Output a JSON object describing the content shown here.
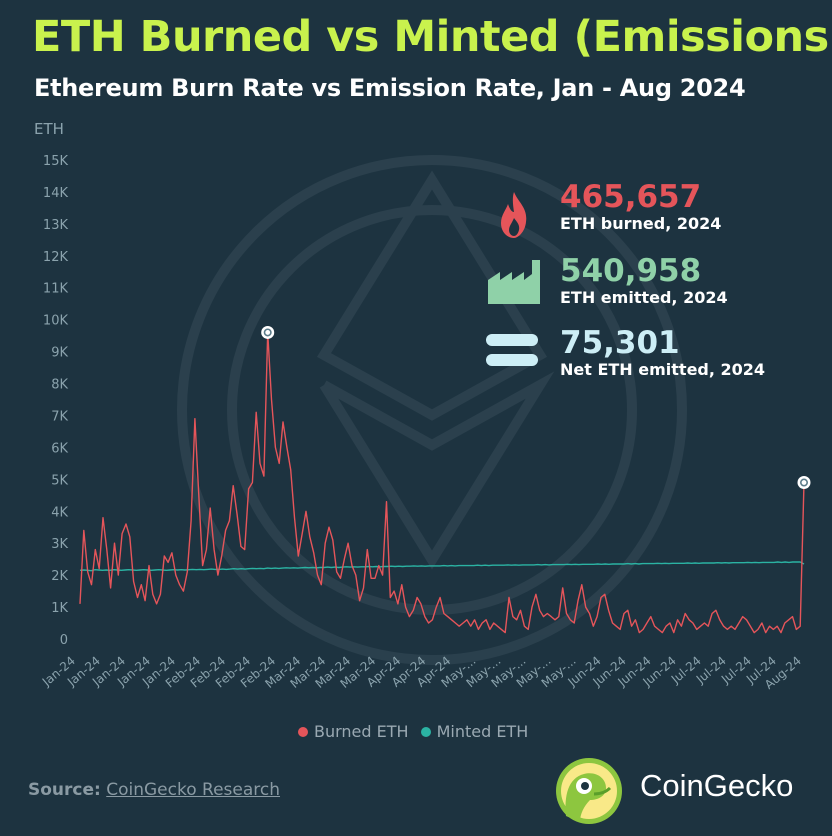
{
  "header": {
    "title": "ETH Burned vs Minted (Emissions)",
    "subtitle": "Ethereum Burn Rate vs Emission Rate, Jan - Aug 2024"
  },
  "stats": [
    {
      "value": "465,657",
      "label": "ETH burned, 2024",
      "color": "#e5555a",
      "icon": "fire-icon"
    },
    {
      "value": "540,958",
      "label": "ETH emitted, 2024",
      "color": "#8fd1a8",
      "icon": "factory-icon"
    },
    {
      "value": "75,301",
      "label": "Net ETH emitted, 2024",
      "color": "#cdeef6",
      "icon": "equals-icon"
    }
  ],
  "legend": {
    "burned": "Burned ETH",
    "minted": "Minted ETH"
  },
  "footer": {
    "source_label": "Source:",
    "source_name": "CoinGecko Research",
    "brand": "CoinGecko"
  },
  "colors": {
    "burned": "#e5555a",
    "minted": "#2bb3a3",
    "title": "#c9f24d",
    "background": "#1d3340"
  },
  "chart_data": {
    "type": "line",
    "ylabel": "ETH",
    "ylim": [
      0,
      15000
    ],
    "yticks": [
      "0",
      "1K",
      "2K",
      "3K",
      "4K",
      "5K",
      "6K",
      "7K",
      "8K",
      "9K",
      "10K",
      "11K",
      "12K",
      "13K",
      "14K",
      "15K"
    ],
    "xticks": [
      "Jan-24",
      "Jan-24",
      "Jan-24",
      "Jan-24",
      "Jan-24",
      "Feb-24",
      "Feb-24",
      "Feb-24",
      "Feb-24",
      "Mar-24",
      "Mar-24",
      "Mar-24",
      "Mar-24",
      "Apr-24",
      "Apr-24",
      "Apr-24",
      "May-...",
      "May-...",
      "May-...",
      "May-...",
      "May-...",
      "Jun-24",
      "Jun-24",
      "Jun-24",
      "Jun-24",
      "Jul-24",
      "Jul-24",
      "Jul-24",
      "Jul-24",
      "Aug-24"
    ],
    "series": [
      {
        "name": "Burned ETH",
        "values": [
          1100,
          3400,
          2100,
          1700,
          2800,
          2200,
          3800,
          2800,
          1600,
          3000,
          2000,
          3300,
          3600,
          3200,
          1800,
          1300,
          1700,
          1200,
          2300,
          1400,
          1100,
          1400,
          2600,
          2400,
          2700,
          2000,
          1700,
          1500,
          2100,
          3700,
          6900,
          4500,
          2300,
          2800,
          4100,
          2800,
          2000,
          2600,
          3400,
          3700,
          4800,
          3900,
          2900,
          2800,
          4700,
          4900,
          7100,
          5500,
          5100,
          9600,
          7500,
          6000,
          5500,
          6800,
          6000,
          5300,
          3800,
          2600,
          3300,
          4000,
          3200,
          2700,
          2000,
          1700,
          3000,
          3500,
          3100,
          2100,
          1900,
          2500,
          3000,
          2300,
          2000,
          1200,
          1600,
          2800,
          1900,
          1900,
          2300,
          2000,
          4300,
          1300,
          1500,
          1100,
          1700,
          1000,
          700,
          900,
          1300,
          1100,
          700,
          500,
          600,
          1000,
          1300,
          800,
          700,
          600,
          500,
          400,
          500,
          600,
          400,
          600,
          300,
          500,
          600,
          300,
          500,
          400,
          300,
          200,
          1300,
          700,
          600,
          900,
          400,
          300,
          1000,
          1400,
          900,
          700,
          800,
          700,
          600,
          700,
          1600,
          800,
          600,
          500,
          1200,
          1700,
          1000,
          800,
          400,
          700,
          1300,
          1400,
          900,
          500,
          400,
          300,
          800,
          900,
          400,
          600,
          200,
          300,
          500,
          700,
          400,
          300,
          200,
          400,
          500,
          200,
          600,
          400,
          800,
          600,
          500,
          300,
          400,
          500,
          400,
          800,
          900,
          600,
          400,
          300,
          400,
          300,
          500,
          700,
          600,
          400,
          200,
          300,
          500,
          200,
          400,
          300,
          400,
          200,
          500,
          600,
          700,
          300,
          400,
          4900
        ]
      },
      {
        "name": "Minted ETH",
        "values": [
          2150,
          2160,
          2150,
          2140,
          2170,
          2160,
          2150,
          2160,
          2150,
          2170,
          2160,
          2150,
          2160,
          2170,
          2160,
          2150,
          2160,
          2170,
          2160,
          2150,
          2160,
          2170,
          2160,
          2150,
          2160,
          2170,
          2160,
          2170,
          2160,
          2170,
          2180,
          2170,
          2180,
          2170,
          2180,
          2190,
          2180,
          2180,
          2190,
          2180,
          2190,
          2200,
          2190,
          2200,
          2190,
          2200,
          2210,
          2200,
          2210,
          2200,
          2220,
          2210,
          2220,
          2210,
          2220,
          2230,
          2220,
          2230,
          2220,
          2230,
          2240,
          2230,
          2240,
          2230,
          2240,
          2240,
          2250,
          2240,
          2250,
          2240,
          2250,
          2260,
          2250,
          2260,
          2250,
          2260,
          2260,
          2270,
          2260,
          2270,
          2260,
          2270,
          2270,
          2280,
          2270,
          2280,
          2270,
          2280,
          2280,
          2290,
          2280,
          2290,
          2280,
          2290,
          2290,
          2290,
          2290,
          2300,
          2290,
          2300,
          2290,
          2300,
          2300,
          2300,
          2300,
          2300,
          2310,
          2300,
          2310,
          2300,
          2310,
          2310,
          2310,
          2310,
          2320,
          2310,
          2320,
          2310,
          2320,
          2320,
          2320,
          2320,
          2330,
          2320,
          2330,
          2320,
          2330,
          2330,
          2330,
          2330,
          2340,
          2330,
          2340,
          2330,
          2340,
          2340,
          2340,
          2340,
          2350,
          2340,
          2350,
          2340,
          2350,
          2350,
          2350,
          2350,
          2360,
          2350,
          2360,
          2350,
          2360,
          2360,
          2360,
          2360,
          2370,
          2360,
          2370,
          2360,
          2370,
          2370,
          2370,
          2370,
          2380,
          2370,
          2380,
          2370,
          2380,
          2380,
          2380,
          2380,
          2390,
          2380,
          2390,
          2380,
          2390,
          2390,
          2390,
          2390,
          2400,
          2390,
          2400,
          2390,
          2400,
          2400,
          2400,
          2400,
          2410,
          2400,
          2410,
          2400,
          2410,
          2410,
          2410,
          2350
        ]
      }
    ],
    "highlights": [
      {
        "series": "Burned ETH",
        "value": 9600
      },
      {
        "series": "Burned ETH",
        "value": 4900
      }
    ]
  }
}
